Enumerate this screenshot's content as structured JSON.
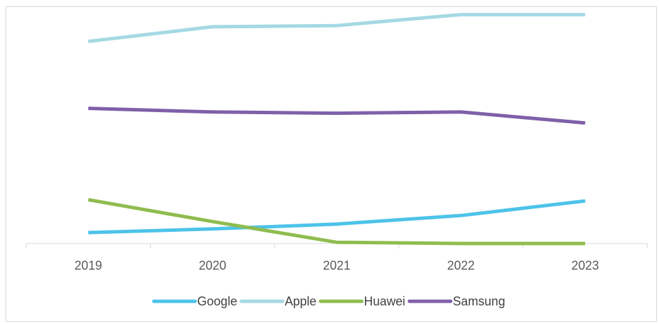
{
  "chart_data": {
    "type": "line",
    "title": "",
    "xlabel": "",
    "ylabel": "",
    "categories": [
      "2019",
      "2020",
      "2021",
      "2022",
      "2023"
    ],
    "ylim": [
      0,
      100
    ],
    "grid": false,
    "y_axis_visible": false,
    "legend_position": "bottom",
    "series": [
      {
        "name": "Google",
        "color": "#4dc3ea",
        "values": [
          4.5,
          6,
          8,
          11.5,
          17.5
        ]
      },
      {
        "name": "Apple",
        "color": "#a5d9e4",
        "values": [
          83,
          89,
          89.5,
          94,
          94
        ]
      },
      {
        "name": "Huawei",
        "color": "#8fbc4f",
        "values": [
          18,
          9,
          0.5,
          0,
          0
        ]
      },
      {
        "name": "Samsung",
        "color": "#7f60a8",
        "values": [
          55.5,
          54,
          53.5,
          54,
          49.5
        ]
      }
    ]
  }
}
